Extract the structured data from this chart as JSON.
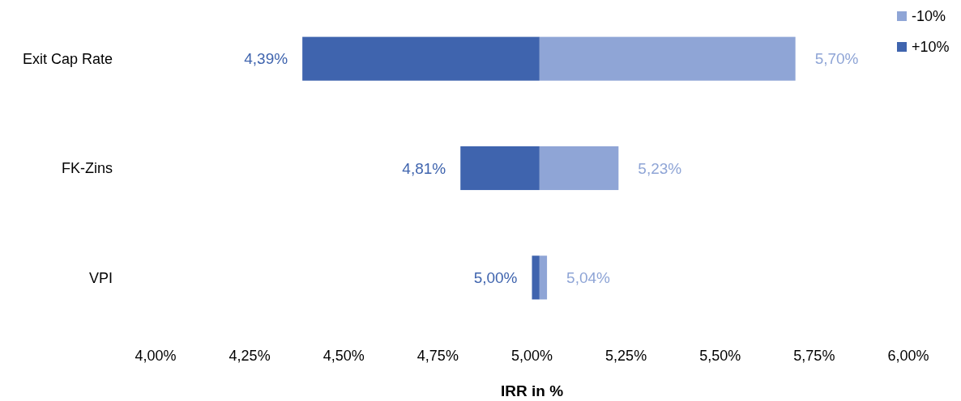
{
  "chart_data": {
    "type": "bar",
    "orientation": "horizontal",
    "xlabel": "IRR in %",
    "categories": [
      "Exit Cap Rate",
      "FK-Zins",
      "VPI"
    ],
    "series": [
      {
        "name": "-10%",
        "color": "#8fa5d6",
        "base": [
          5.02,
          5.02,
          5.02
        ],
        "values": [
          0.68,
          0.21,
          0.02
        ],
        "value_labels": [
          "5,70%",
          "5,23%",
          "5,04%"
        ]
      },
      {
        "name": "+10%",
        "color": "#3f64ae",
        "base": [
          5.02,
          5.02,
          5.02
        ],
        "values": [
          -0.63,
          -0.21,
          -0.02
        ],
        "value_labels": [
          "4,39%",
          "4,81%",
          "5,00%"
        ]
      }
    ],
    "xlim": [
      4,
      6
    ],
    "xticks": [
      {
        "value": 4,
        "label": "4,00%"
      },
      {
        "value": 4.25,
        "label": "4,25%"
      },
      {
        "value": 4.5,
        "label": "4,50%"
      },
      {
        "value": 4.75,
        "label": "4,75%"
      },
      {
        "value": 5,
        "label": "5,00%"
      },
      {
        "value": 5.25,
        "label": "5,25%"
      },
      {
        "value": 5.5,
        "label": "5,50%"
      },
      {
        "value": 5.75,
        "label": "5,75%"
      },
      {
        "value": 6,
        "label": "6,00%"
      }
    ],
    "grid": false,
    "legend": "top right"
  }
}
